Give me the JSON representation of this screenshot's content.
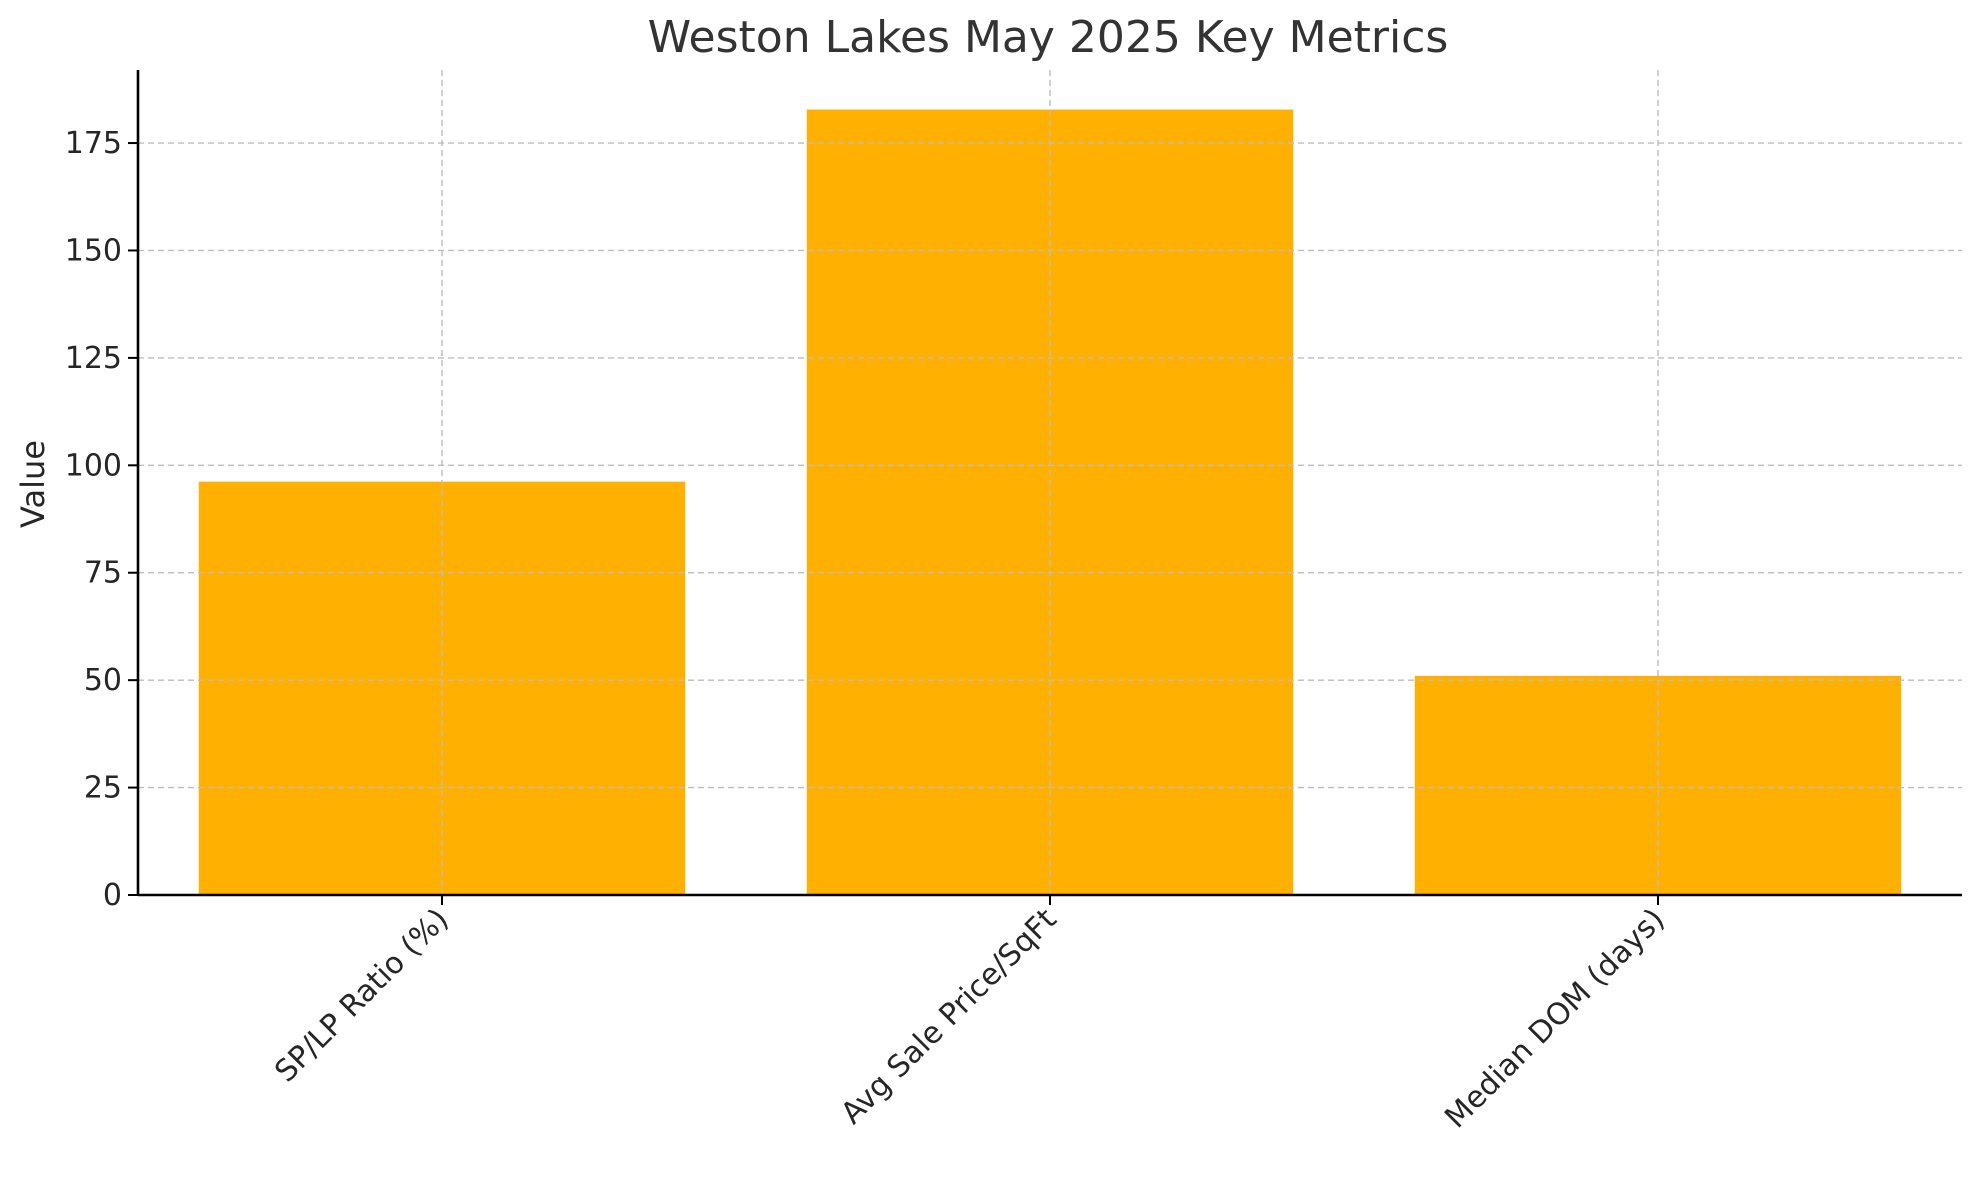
{
  "chart_data": {
    "type": "bar",
    "title": "Weston Lakes May 2025 Key Metrics",
    "xlabel": "",
    "ylabel": "Value",
    "categories": [
      "SP/LP Ratio (%)",
      "Avg Sale Price/SqFt",
      "Median DOM (days)"
    ],
    "values": [
      96.2,
      182.8,
      51
    ],
    "ylim": [
      0,
      192
    ],
    "yticks": [
      0,
      25,
      50,
      75,
      100,
      125,
      150,
      175
    ],
    "grid": true,
    "bar_color": "#FFB000"
  }
}
